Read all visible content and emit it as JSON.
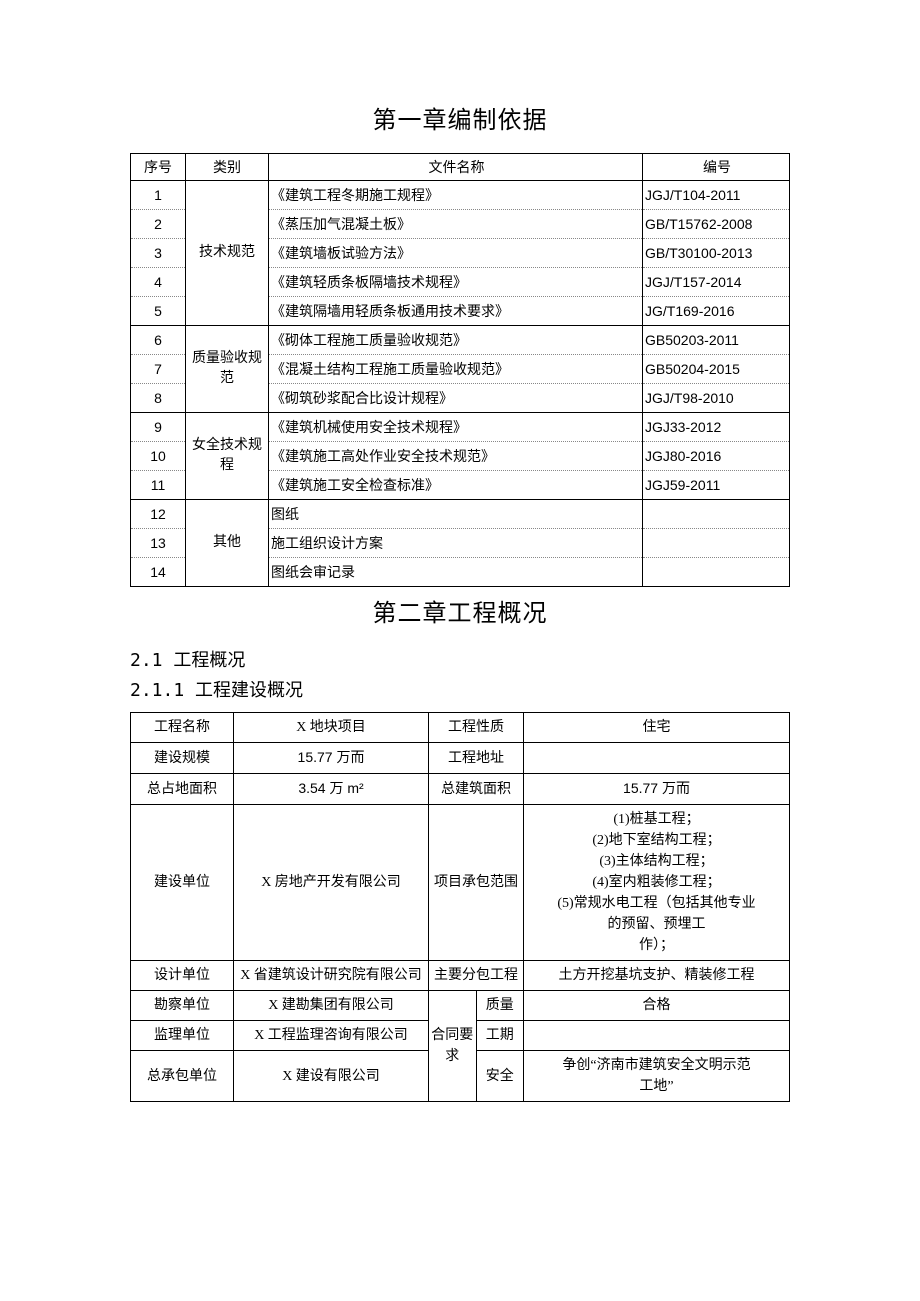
{
  "chapter1": {
    "title": "第一章编制依据",
    "headers": {
      "seq": "序号",
      "cat": "类别",
      "name": "文件名称",
      "code": "编号"
    },
    "groups": [
      {
        "cat": "技术规范",
        "rows": [
          {
            "seq": "1",
            "name": "《建筑工程冬期施工规程》",
            "code": "JGJ/T104-2011"
          },
          {
            "seq": "2",
            "name": "《蒸压加气混凝土板》",
            "code": "GB/T15762-2008"
          },
          {
            "seq": "3",
            "name": "《建筑墙板试验方法》",
            "code": "GB/T30100-2013"
          },
          {
            "seq": "4",
            "name": "《建筑轻质条板隔墙技术规程》",
            "code": "JGJ/T157-2014"
          },
          {
            "seq": "5",
            "name": "《建筑隔墙用轻质条板通用技术要求》",
            "code": "JG/T169-2016"
          }
        ]
      },
      {
        "cat": "质量验收规\n范",
        "rows": [
          {
            "seq": "6",
            "name": "《砌体工程施工质量验收规范》",
            "code": "GB50203-2011"
          },
          {
            "seq": "7",
            "name": "《混凝土结构工程施工质量验收规范》",
            "code": "GB50204-2015"
          },
          {
            "seq": "8",
            "name": "《砌筑砂浆配合比设计规程》",
            "code": "JGJ/T98-2010"
          }
        ]
      },
      {
        "cat": "女全技术规\n程",
        "rows": [
          {
            "seq": "9",
            "name": "《建筑机械使用安全技术规程》",
            "code": "JGJ33-2012"
          },
          {
            "seq": "10",
            "name": "《建筑施工高处作业安全技术规范》",
            "code": "JGJ80-2016"
          },
          {
            "seq": "11",
            "name": "《建筑施工安全检查标准》",
            "code": "JGJ59-2011"
          }
        ]
      },
      {
        "cat": "其他",
        "rows": [
          {
            "seq": "12",
            "name": "图纸",
            "code": ""
          },
          {
            "seq": "13",
            "name": "施工组织设计方案",
            "code": ""
          },
          {
            "seq": "14",
            "name": "图纸会审记录",
            "code": ""
          }
        ]
      }
    ]
  },
  "chapter2": {
    "title": "第二章工程概况",
    "section": "2.1 工程概况",
    "subsection": "2.1.1 工程建设概况",
    "labels": {
      "proj_name": "工程名称",
      "proj_name_v": "X 地块项目",
      "proj_nature": "工程性质",
      "proj_nature_v": "住宅",
      "scale": "建设规模",
      "scale_v": "15.77 万而",
      "addr": "工程地址",
      "addr_v": "",
      "land": "总占地面积",
      "land_v": "3.54 万 m²",
      "area": "总建筑面积",
      "area_v": "15.77 万而",
      "owner": "建设单位",
      "owner_v": "X 房地产开发有限公司",
      "scope": "项目承包范围",
      "scope_v": "(1)桩基工程；\n(2)地下室结构工程；\n(3)主体结构工程；\n(4)室内粗装修工程；\n(5)常规水电工程（包括其他专业\n的预留、预埋工\n作）；",
      "design": "设计单位",
      "design_v": "X 省建筑设计研究院有限公司",
      "sub": "主要分包工程",
      "sub_v": "土方开挖基坑支护、精装修工程",
      "survey": "勘察单位",
      "survey_v": "X 建勘集团有限公司",
      "supervise": "监理单位",
      "supervise_v": "X 工程监理咨询有限公司",
      "gc": "总承包单位",
      "gc_v": "X 建设有限公司",
      "contract": "合同要\n求",
      "quality": "质量",
      "quality_v": "合格",
      "period": "工期",
      "period_v": "",
      "safety": "安全",
      "safety_v": "争创“济南市建筑安全文明示范\n工地”"
    }
  },
  "style": {
    "page_bg": "#ffffff",
    "text_color": "#000000",
    "border_color": "#000000",
    "dotted_color": "#888888",
    "title_fontsize": 24,
    "section_fontsize": 18,
    "table_fontsize": 14
  }
}
